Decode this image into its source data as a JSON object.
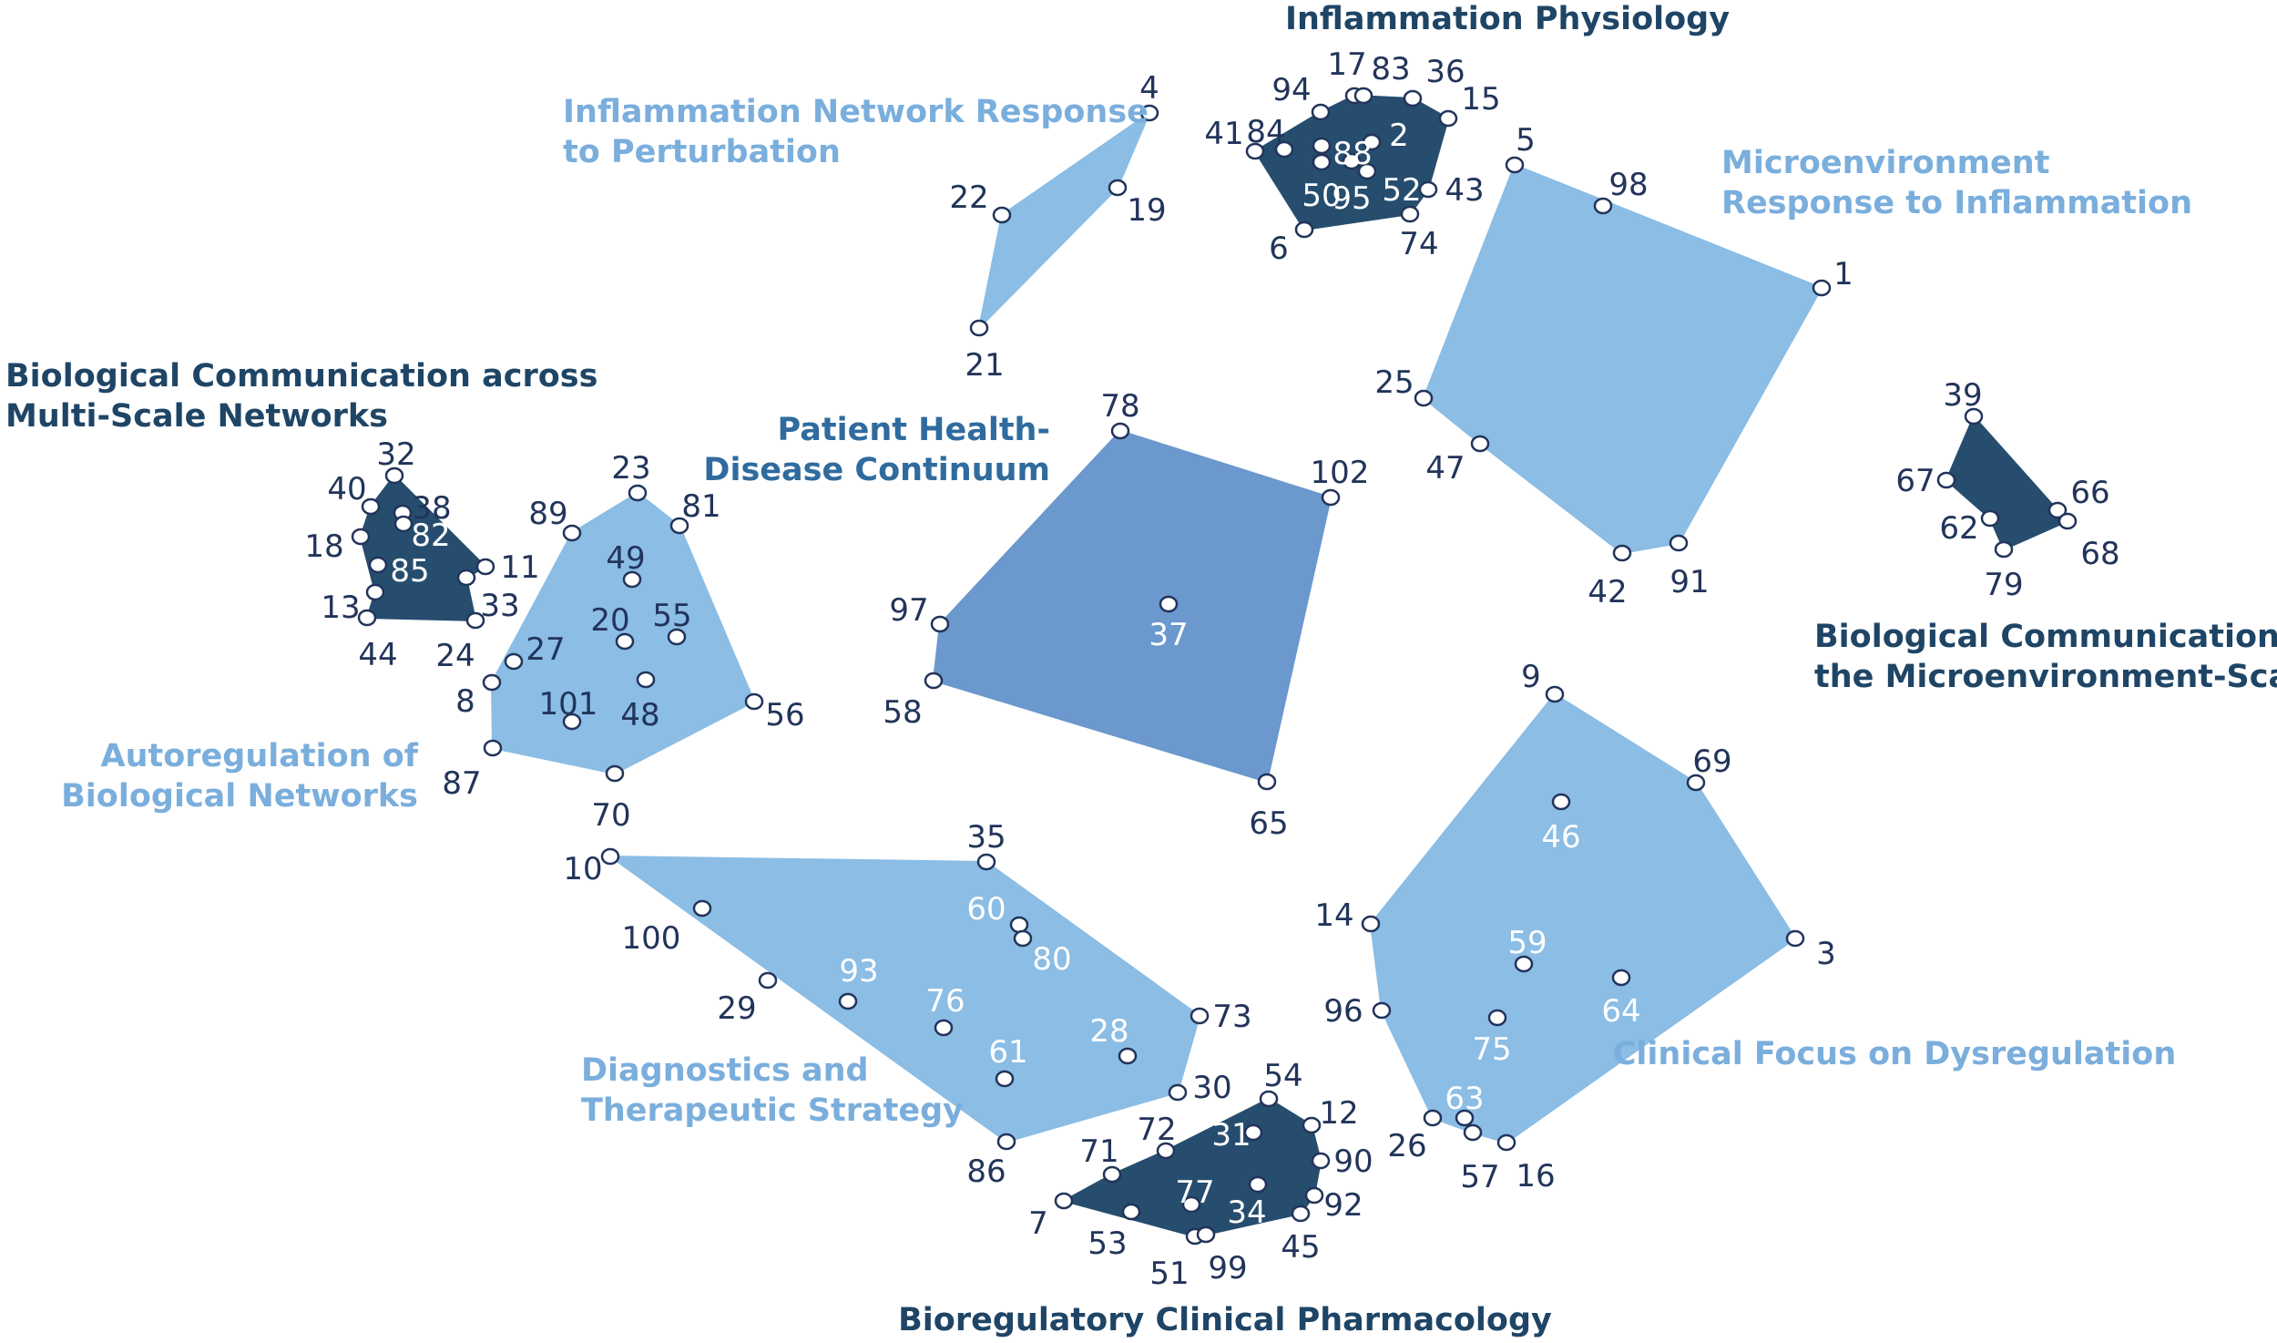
{
  "colors": {
    "dark": "#264d6e",
    "light": "#8bbde5",
    "medium": "#6b98cd",
    "label_dark": "#1f4566",
    "label_light": "#7aaedc",
    "label_medium": "#2f6b9e",
    "number_dark": "#22345a"
  },
  "clusters": [
    {
      "id": "inflammation-physiology",
      "label": [
        "Inflammation Physiology"
      ],
      "tone": "dark",
      "members": [
        "2",
        "6",
        "15",
        "17",
        "36",
        "41",
        "43",
        "50",
        "52",
        "74",
        "83",
        "84",
        "88",
        "94",
        "95"
      ]
    },
    {
      "id": "inflammation-network-response",
      "label": [
        "Inflammation Network Response",
        "to Perturbation"
      ],
      "tone": "light",
      "members": [
        "4",
        "19",
        "21",
        "22"
      ]
    },
    {
      "id": "microenvironment-response",
      "label": [
        "Microenvironment",
        "Response to Inflammation"
      ],
      "tone": "light",
      "members": [
        "1",
        "5",
        "25",
        "42",
        "47",
        "91",
        "98"
      ]
    },
    {
      "id": "bio-comm-multiscale",
      "label": [
        "Biological Communication across",
        "Multi-Scale Networks"
      ],
      "tone": "dark",
      "members": [
        "11",
        "13",
        "18",
        "24",
        "32",
        "33",
        "38",
        "40",
        "44",
        "82",
        "85"
      ]
    },
    {
      "id": "autoregulation",
      "label": [
        "Autoregulation of",
        "Biological Networks"
      ],
      "tone": "light",
      "members": [
        "8",
        "20",
        "23",
        "27",
        "48",
        "49",
        "55",
        "56",
        "70",
        "81",
        "87",
        "89",
        "101"
      ]
    },
    {
      "id": "patient-health",
      "label": [
        "Patient Health-",
        "Disease Continuum"
      ],
      "tone": "medium",
      "members": [
        "37",
        "58",
        "65",
        "78",
        "97",
        "102"
      ]
    },
    {
      "id": "bio-comm-microenv",
      "label": [
        "Biological Communication at",
        "the Microenvironment-Scale"
      ],
      "tone": "dark",
      "members": [
        "39",
        "62",
        "66",
        "67",
        "68",
        "79"
      ]
    },
    {
      "id": "clinical-focus",
      "label": [
        "Clinical Focus on Dysregulation"
      ],
      "tone": "light",
      "members": [
        "3",
        "9",
        "14",
        "16",
        "26",
        "46",
        "57",
        "59",
        "63",
        "64",
        "69",
        "75",
        "96"
      ]
    },
    {
      "id": "diagnostics",
      "label": [
        "Diagnostics and",
        "Therapeutic Strategy"
      ],
      "tone": "light",
      "members": [
        "10",
        "28",
        "29",
        "30",
        "35",
        "60",
        "61",
        "73",
        "76",
        "80",
        "86",
        "93",
        "100"
      ]
    },
    {
      "id": "bioregulatory-pharmacology",
      "label": [
        "Bioregulatory Clinical Pharmacology"
      ],
      "tone": "dark",
      "members": [
        "7",
        "12",
        "31",
        "34",
        "45",
        "51",
        "53",
        "54",
        "71",
        "72",
        "77",
        "90",
        "92",
        "99"
      ]
    }
  ]
}
